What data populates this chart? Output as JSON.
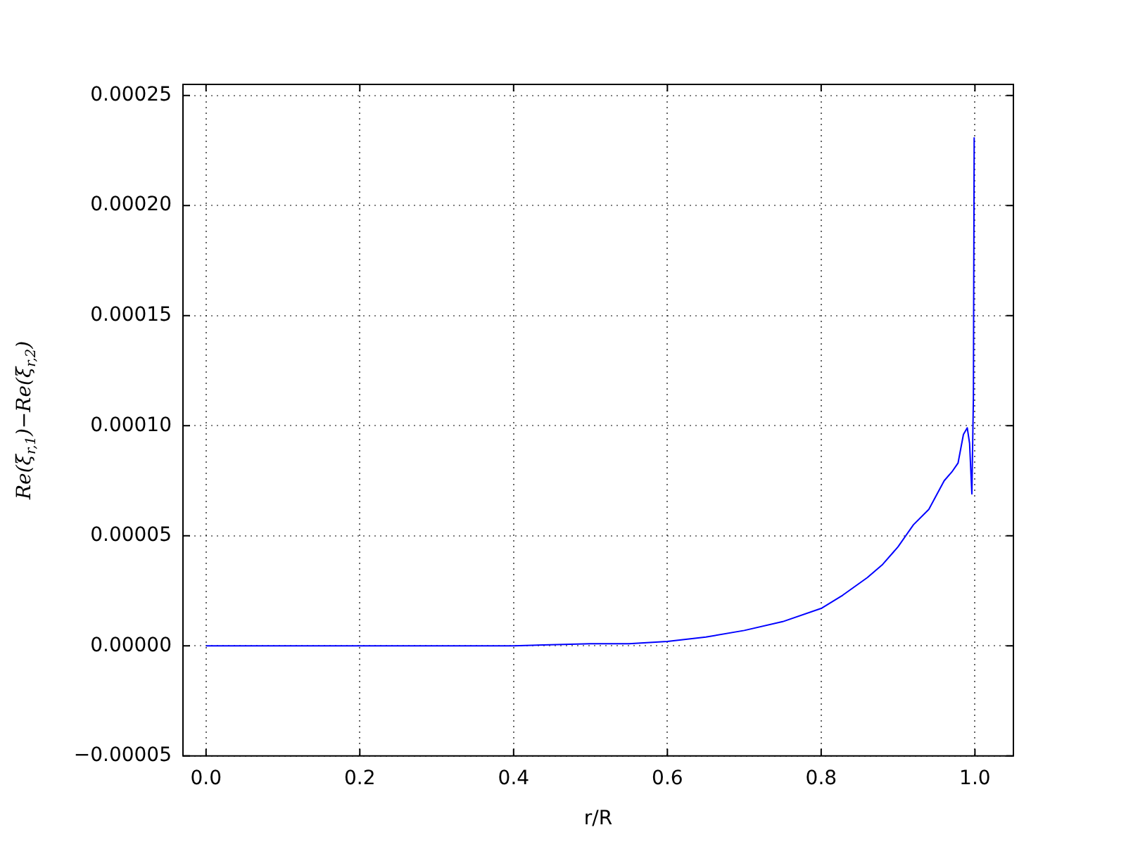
{
  "chart_data": {
    "type": "line",
    "xlabel": "r/R",
    "ylabel": "Re(ξ$_{r,1}$)−Re(ξ$_{r,2}$)",
    "series": [
      {
        "color": "#0000ff",
        "x": [
          0,
          0.1,
          0.2,
          0.3,
          0.4,
          0.5,
          0.55,
          0.6,
          0.65,
          0.7,
          0.75,
          0.8,
          0.828,
          0.86,
          0.88,
          0.9,
          0.92,
          0.94,
          0.96,
          0.97,
          0.978,
          0.985,
          0.99,
          0.993,
          0.996,
          0.998,
          0.999,
          1.0
        ],
        "values": [
          0,
          0,
          0,
          0,
          0,
          1e-06,
          1e-06,
          2e-06,
          4e-06,
          7e-06,
          1.1e-05,
          1.7e-05,
          2.3e-05,
          3.1e-05,
          3.7e-05,
          4.5e-05,
          5.5e-05,
          6.2e-05,
          7.5e-05,
          7.9e-05,
          8.3e-05,
          9.6e-05,
          9.9e-05,
          9.2e-05,
          6.9e-05,
          0.000113,
          0.000231,
          0.000231
        ]
      }
    ],
    "xlim": [
      -0.03,
      1.05
    ],
    "xticks": [
      {
        "value": 0,
        "label": "0.0"
      },
      {
        "value": 0.2,
        "label": "0.2"
      },
      {
        "value": 0.4,
        "label": "0.4"
      },
      {
        "value": 0.6,
        "label": "0.6"
      },
      {
        "value": 0.8,
        "label": "0.8"
      },
      {
        "value": 1.0,
        "label": "1.0"
      }
    ],
    "ylim": [
      -5e-05,
      0.000255
    ],
    "yticks": [
      {
        "value": -5e-05,
        "label": "−0.00005"
      },
      {
        "value": 0,
        "label": "0.00000"
      },
      {
        "value": 5e-05,
        "label": "0.00005"
      },
      {
        "value": 0.0001,
        "label": "0.00010"
      },
      {
        "value": 0.00015,
        "label": "0.00015"
      },
      {
        "value": 0.0002,
        "label": "0.00020"
      },
      {
        "value": 0.00025,
        "label": "0.00025"
      }
    ],
    "grid": true,
    "legend": false,
    "marker": "none",
    "line_style": "solid"
  }
}
